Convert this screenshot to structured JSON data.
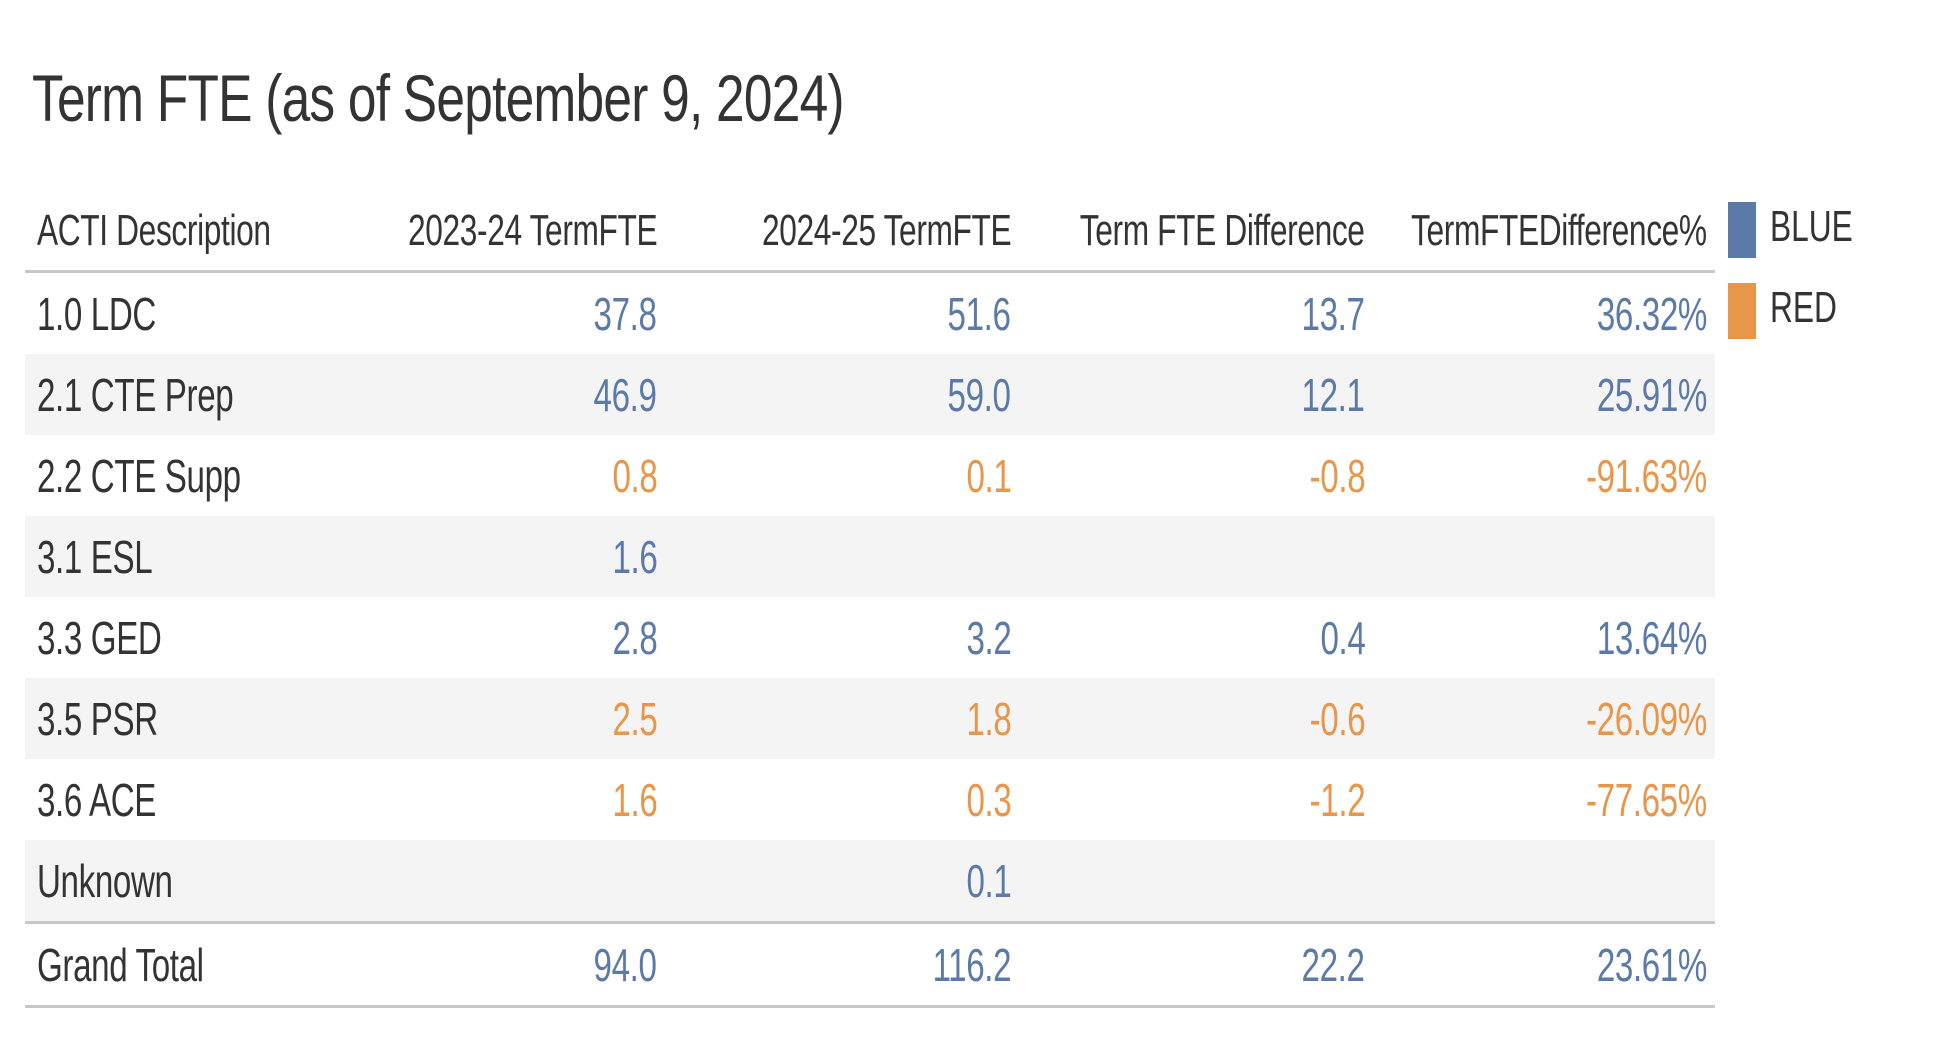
{
  "title": "Term FTE (as of September 9, 2024)",
  "colors": {
    "blue": "#5b7aa8",
    "red": "#e8964a",
    "text": "#333333"
  },
  "legend": [
    {
      "label": "BLUE",
      "color": "#5b7aa8"
    },
    {
      "label": "RED",
      "color": "#e8964a"
    }
  ],
  "chart_data": {
    "type": "table",
    "title": "Term FTE (as of September 9, 2024)",
    "columns": [
      "ACTI Description",
      "2023-24 TermFTE",
      "2024-25 TermFTE",
      "Term FTE Difference",
      "TermFTEDifference%"
    ],
    "rows": [
      {
        "label": "1.0 LDC",
        "v2324": "37.8",
        "v2425": "51.6",
        "diff": "13.7",
        "pct": "36.32%",
        "color": "BLUE"
      },
      {
        "label": "2.1 CTE Prep",
        "v2324": "46.9",
        "v2425": "59.0",
        "diff": "12.1",
        "pct": "25.91%",
        "color": "BLUE"
      },
      {
        "label": "2.2 CTE Supp",
        "v2324": "0.8",
        "v2425": "0.1",
        "diff": "-0.8",
        "pct": "-91.63%",
        "color": "RED"
      },
      {
        "label": "3.1 ESL",
        "v2324": "1.6",
        "v2425": "",
        "diff": "",
        "pct": "",
        "color": "BLUE"
      },
      {
        "label": "3.3 GED",
        "v2324": "2.8",
        "v2425": "3.2",
        "diff": "0.4",
        "pct": "13.64%",
        "color": "BLUE"
      },
      {
        "label": "3.5 PSR",
        "v2324": "2.5",
        "v2425": "1.8",
        "diff": "-0.6",
        "pct": "-26.09%",
        "color": "RED"
      },
      {
        "label": "3.6 ACE",
        "v2324": "1.6",
        "v2425": "0.3",
        "diff": "-1.2",
        "pct": "-77.65%",
        "color": "RED"
      },
      {
        "label": "Unknown",
        "v2324": "",
        "v2425": "0.1",
        "diff": "",
        "pct": "",
        "color": "BLUE"
      }
    ],
    "total": {
      "label": "Grand Total",
      "v2324": "94.0",
      "v2425": "116.2",
      "diff": "22.2",
      "pct": "23.61%",
      "color": "BLUE"
    }
  }
}
